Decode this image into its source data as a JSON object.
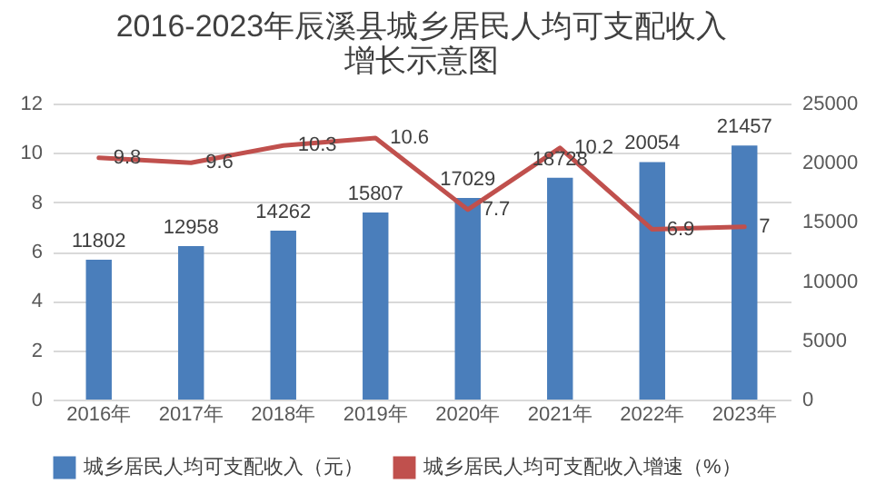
{
  "chart_data": {
    "type": "bar",
    "title": "2016-2023年辰溪县城乡居民人均可支配收入增长示意图",
    "categories": [
      "2016年",
      "2017年",
      "2018年",
      "2019年",
      "2020年",
      "2021年",
      "2022年",
      "2023年"
    ],
    "series": [
      {
        "name": "城乡居民人均可支配收入（元）",
        "axis": "y2",
        "color": "#4a7ebb",
        "values": [
          11802,
          12958,
          14262,
          15807,
          17029,
          18728,
          20054,
          21457
        ]
      },
      {
        "name": "城乡居民人均可支配收入增速（%）",
        "type": "line",
        "color": "#c0504d",
        "values": [
          9.8,
          9.6,
          10.3,
          10.6,
          7.7,
          10.2,
          6.9,
          7
        ]
      }
    ],
    "ylim": [
      0,
      12
    ],
    "yticks": [
      0,
      2,
      4,
      6,
      8,
      10,
      12
    ],
    "y2lim": [
      0,
      25000
    ],
    "y2ticks": [
      0,
      5000,
      10000,
      15000,
      20000,
      25000
    ],
    "grid": "y",
    "legend": "bottom",
    "data_labels": true,
    "marker": "none",
    "line_style": "solid"
  }
}
